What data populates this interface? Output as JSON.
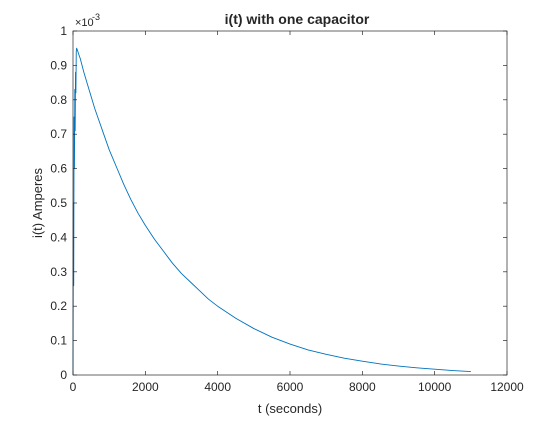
{
  "chart_data": {
    "type": "line",
    "title": "i(t) with one capacitor",
    "xlabel": "t (seconds)",
    "ylabel": "i(t) Amperes",
    "y_exponent_base": "×10",
    "y_exponent_power": "-3",
    "xlim": [
      0,
      12000
    ],
    "ylim": [
      0,
      1
    ],
    "xticks": [
      0,
      2000,
      4000,
      6000,
      8000,
      10000,
      12000
    ],
    "yticks": [
      0,
      0.1,
      0.2,
      0.3,
      0.4,
      0.5,
      0.6,
      0.7,
      0.8,
      0.9,
      1
    ],
    "xtick_labels": [
      "0",
      "2000",
      "4000",
      "6000",
      "8000",
      "10000",
      "12000"
    ],
    "ytick_labels": [
      "0",
      "0.1",
      "0.2",
      "0.3",
      "0.4",
      "0.5",
      "0.6",
      "0.7",
      "0.8",
      "0.9",
      "1"
    ],
    "grid": false,
    "box": true,
    "line_color": "#0072bd",
    "series": [
      {
        "x": [
          0,
          10,
          20,
          30,
          40,
          50,
          60,
          70,
          80,
          90,
          100,
          120,
          150,
          200,
          300,
          400,
          500,
          600,
          700,
          800,
          1000,
          1200,
          1400,
          1600,
          1800,
          2000,
          2250,
          2500,
          2750,
          3000,
          3250,
          3500,
          3750,
          4000,
          4500,
          5000,
          5500,
          6000,
          6500,
          7000,
          7500,
          8000,
          8500,
          9000,
          9500,
          10000,
          10500,
          11000
        ],
        "y": [
          0,
          0.5,
          0.26,
          0.75,
          0.6,
          0.83,
          0.71,
          0.88,
          0.82,
          0.94,
          0.95,
          0.945,
          0.935,
          0.92,
          0.88,
          0.845,
          0.81,
          0.775,
          0.745,
          0.715,
          0.655,
          0.605,
          0.555,
          0.51,
          0.47,
          0.435,
          0.395,
          0.36,
          0.325,
          0.295,
          0.27,
          0.245,
          0.22,
          0.2,
          0.165,
          0.135,
          0.11,
          0.09,
          0.073,
          0.06,
          0.049,
          0.04,
          0.032,
          0.026,
          0.021,
          0.017,
          0.013,
          0.01
        ]
      }
    ]
  }
}
